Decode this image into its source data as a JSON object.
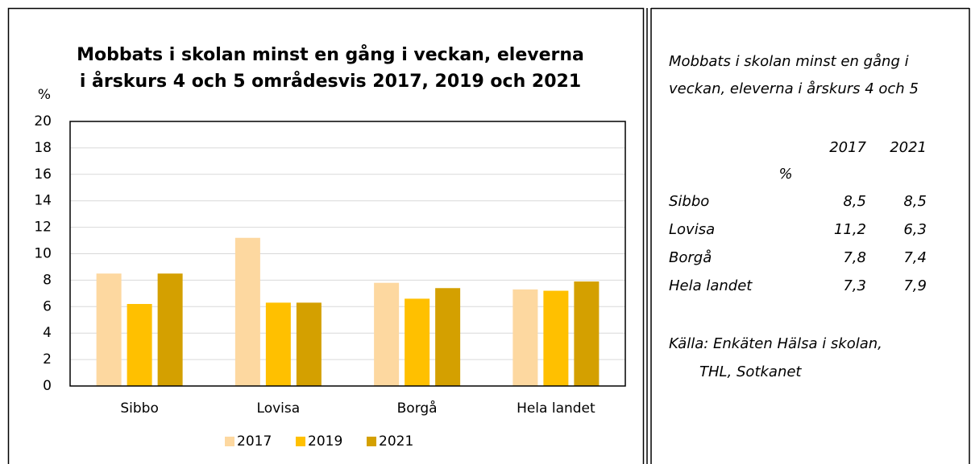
{
  "chart_data": {
    "type": "bar",
    "title": "Mobbats i skolan minst en gång i veckan, eleverna\ni årskurs 4 och 5 områdesvis 2017, 2019 och 2021",
    "y_label": "%",
    "categories": [
      "Sibbo",
      "Lovisa",
      "Borgå",
      "Hela landet"
    ],
    "series": [
      {
        "name": "2017",
        "color": "#fdd8a0",
        "values": [
          8.5,
          11.2,
          7.8,
          7.3
        ]
      },
      {
        "name": "2019",
        "color": "#ffc000",
        "values": [
          6.2,
          6.3,
          6.6,
          7.2
        ]
      },
      {
        "name": "2021",
        "color": "#d4a000",
        "values": [
          8.5,
          6.3,
          7.4,
          7.9
        ]
      }
    ],
    "ylim": [
      0,
      20
    ],
    "yticks": [
      0,
      2,
      4,
      6,
      8,
      10,
      12,
      14,
      16,
      18,
      20
    ],
    "grid": true,
    "legend": "bottom"
  },
  "side_panel": {
    "title": "Mobbats i skolan minst en gång i\nveckan, eleverna i årskurs 4 och 5",
    "columns": [
      "2017",
      "2021"
    ],
    "unit": "%",
    "rows": [
      [
        "Sibbo",
        "8,5",
        "8,5"
      ],
      [
        "Lovisa",
        "11,2",
        "6,3"
      ],
      [
        "Borgå",
        "7,8",
        "7,4"
      ],
      [
        "Hela landet",
        "7,3",
        "7,9"
      ]
    ],
    "source": "Källa: Enkäten Hälsa i skolan,\nTHL, Sotkanet"
  }
}
